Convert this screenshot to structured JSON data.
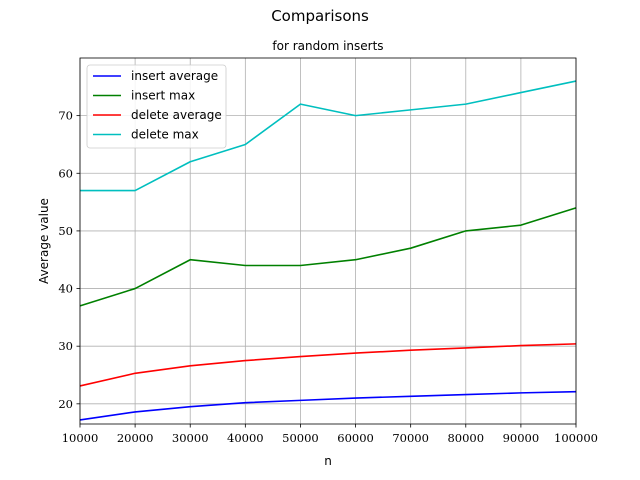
{
  "chart_data": {
    "type": "line",
    "title": "Comparisons",
    "subtitle": "for random inserts",
    "xlabel": "n",
    "ylabel": "Average value",
    "x": [
      10000,
      20000,
      30000,
      40000,
      50000,
      60000,
      70000,
      80000,
      90000,
      100000
    ],
    "xlim": [
      10000,
      100000
    ],
    "ylim": [
      16.5,
      80
    ],
    "xticks": [
      10000,
      20000,
      30000,
      40000,
      50000,
      60000,
      70000,
      80000,
      90000,
      100000
    ],
    "yticks": [
      20,
      30,
      40,
      50,
      60,
      70
    ],
    "grid": true,
    "legend_position": "top-left",
    "series": [
      {
        "name": "insert average",
        "color": "#0000ff",
        "values": [
          17.2,
          18.6,
          19.5,
          20.2,
          20.6,
          21.0,
          21.3,
          21.6,
          21.9,
          22.1
        ]
      },
      {
        "name": "insert max",
        "color": "#008000",
        "values": [
          37,
          40,
          45,
          44,
          44,
          45,
          47,
          50,
          51,
          54
        ]
      },
      {
        "name": "delete average",
        "color": "#ff0000",
        "values": [
          23.1,
          25.3,
          26.6,
          27.5,
          28.2,
          28.8,
          29.3,
          29.7,
          30.1,
          30.4
        ]
      },
      {
        "name": "delete max",
        "color": "#00bfbf",
        "values": [
          57,
          57,
          62,
          65,
          72,
          70,
          71,
          72,
          74,
          76
        ]
      }
    ]
  }
}
